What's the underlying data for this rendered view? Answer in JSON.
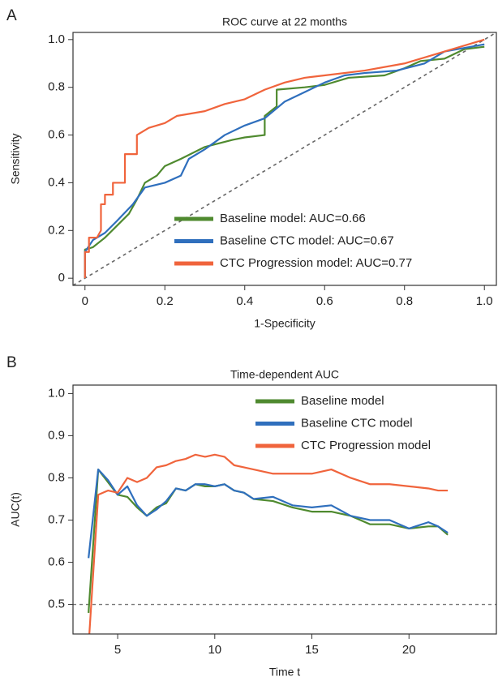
{
  "chart_data": [
    {
      "type": "line",
      "panel_label": "A",
      "title": "ROC curve at 22 months",
      "xlabel": "1-Specificity",
      "ylabel": "Sensitivity",
      "xlim": [
        -0.03,
        1.03
      ],
      "ylim": [
        -0.03,
        1.03
      ],
      "xticks": [
        0,
        0.2,
        0.4,
        0.6,
        0.8,
        {
          "value": 1,
          "label": "1.0"
        }
      ],
      "yticks": [
        0,
        0.2,
        0.4,
        0.6,
        0.8,
        {
          "value": 1,
          "label": "1.0"
        }
      ],
      "diagonal": true,
      "legend": "lower right",
      "series": [
        {
          "name": "Baseline model: AUC=0.66",
          "color": "#4f8a2f",
          "x": [
            0,
            0,
            0.02,
            0.05,
            0.08,
            0.11,
            0.13,
            0.15,
            0.18,
            0.2,
            0.24,
            0.3,
            0.37,
            0.4,
            0.45,
            0.45,
            0.48,
            0.48,
            0.55,
            0.6,
            0.66,
            0.75,
            0.8,
            0.84,
            0.9,
            0.95,
            1
          ],
          "values": [
            0,
            0.12,
            0.13,
            0.17,
            0.22,
            0.27,
            0.33,
            0.4,
            0.43,
            0.47,
            0.5,
            0.55,
            0.58,
            0.59,
            0.6,
            0.68,
            0.72,
            0.79,
            0.8,
            0.81,
            0.84,
            0.85,
            0.88,
            0.91,
            0.92,
            0.96,
            0.97
          ]
        },
        {
          "name": "Baseline CTC model: AUC=0.67",
          "color": "#2f6fbd",
          "x": [
            0,
            0,
            0.02,
            0.05,
            0.08,
            0.12,
            0.15,
            0.2,
            0.24,
            0.26,
            0.3,
            0.35,
            0.4,
            0.45,
            0.5,
            0.55,
            0.6,
            0.65,
            0.7,
            0.78,
            0.85,
            0.9,
            1
          ],
          "values": [
            0,
            0.11,
            0.16,
            0.19,
            0.24,
            0.31,
            0.38,
            0.4,
            0.43,
            0.5,
            0.54,
            0.6,
            0.64,
            0.67,
            0.74,
            0.78,
            0.82,
            0.85,
            0.86,
            0.87,
            0.9,
            0.95,
            0.98
          ]
        },
        {
          "name": "CTC Progression model: AUC=0.77",
          "color": "#f0643c",
          "x": [
            0,
            0,
            0.01,
            0.01,
            0.03,
            0.04,
            0.04,
            0.05,
            0.05,
            0.07,
            0.07,
            0.1,
            0.1,
            0.13,
            0.13,
            0.16,
            0.2,
            0.23,
            0.3,
            0.35,
            0.4,
            0.45,
            0.5,
            0.55,
            0.6,
            0.7,
            0.8,
            0.9,
            1
          ],
          "values": [
            0,
            0.11,
            0.11,
            0.17,
            0.17,
            0.2,
            0.31,
            0.31,
            0.35,
            0.35,
            0.4,
            0.4,
            0.52,
            0.52,
            0.6,
            0.63,
            0.65,
            0.68,
            0.7,
            0.73,
            0.75,
            0.79,
            0.82,
            0.84,
            0.85,
            0.87,
            0.9,
            0.95,
            1
          ]
        }
      ]
    },
    {
      "type": "line",
      "panel_label": "B",
      "title": "Time-dependent AUC",
      "xlabel": "Time t",
      "ylabel": "AUC(t)",
      "xlim": [
        2.7,
        24.5
      ],
      "ylim": [
        0.43,
        1.02
      ],
      "xticks": [
        5,
        10,
        15,
        20
      ],
      "yticks": [
        0.5,
        0.6,
        0.7,
        0.8,
        0.9,
        {
          "value": 1,
          "label": "1.0"
        }
      ],
      "reference_line": 0.5,
      "legend": "upper right",
      "x": [
        3.5,
        4,
        4.5,
        5,
        5.5,
        6,
        6.5,
        7,
        7.5,
        8,
        8.5,
        9,
        9.5,
        10,
        10.5,
        11,
        11.5,
        12,
        13,
        14,
        15,
        16,
        17,
        18,
        19,
        20,
        21,
        21.5,
        22
      ],
      "series": [
        {
          "name": "Baseline model",
          "color": "#4f8a2f",
          "values": [
            0.48,
            0.82,
            0.79,
            0.76,
            0.755,
            0.73,
            0.71,
            0.73,
            0.74,
            0.775,
            0.77,
            0.785,
            0.78,
            0.78,
            0.785,
            0.77,
            0.765,
            0.75,
            0.745,
            0.73,
            0.72,
            0.72,
            0.71,
            0.69,
            0.69,
            0.68,
            0.685,
            0.685,
            0.665
          ]
        },
        {
          "name": "Baseline CTC model",
          "color": "#2f6fbd",
          "values": [
            0.61,
            0.82,
            0.795,
            0.76,
            0.78,
            0.735,
            0.71,
            0.725,
            0.745,
            0.775,
            0.77,
            0.785,
            0.785,
            0.78,
            0.785,
            0.77,
            0.765,
            0.75,
            0.755,
            0.735,
            0.73,
            0.735,
            0.71,
            0.7,
            0.7,
            0.68,
            0.695,
            0.685,
            0.67
          ]
        },
        {
          "name": "CTC Progression model",
          "color": "#f0643c",
          "values": [
            0.4,
            0.76,
            0.77,
            0.765,
            0.8,
            0.79,
            0.8,
            0.825,
            0.83,
            0.84,
            0.845,
            0.855,
            0.85,
            0.855,
            0.85,
            0.83,
            0.825,
            0.82,
            0.81,
            0.81,
            0.81,
            0.82,
            0.8,
            0.785,
            0.785,
            0.78,
            0.775,
            0.77,
            0.77
          ]
        }
      ]
    }
  ]
}
